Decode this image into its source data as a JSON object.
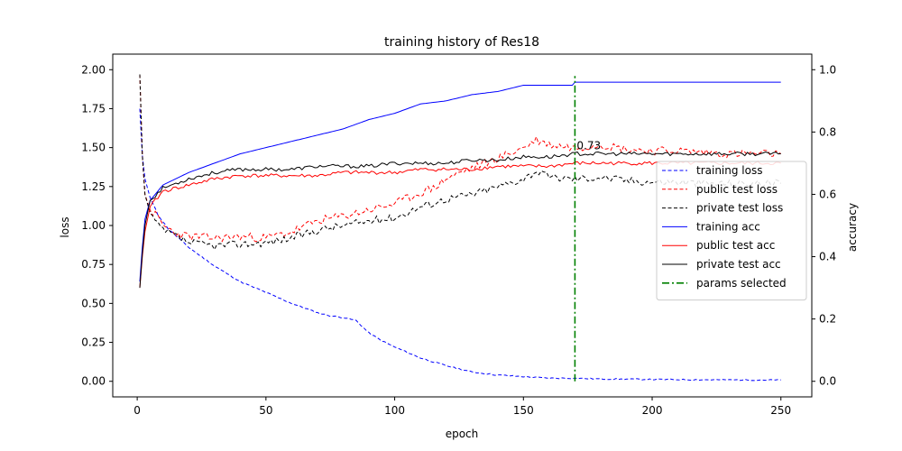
{
  "chart_data": {
    "type": "line",
    "title": "training history of Res18",
    "xlabel": "epoch",
    "ylabel": "loss",
    "ylabel_right": "accuracy",
    "xlim": [
      -9.5,
      262
    ],
    "ylim": [
      -0.1,
      2.1
    ],
    "ylim_right": [
      -0.05,
      1.05
    ],
    "x_ticks": [
      0,
      50,
      100,
      150,
      200,
      250
    ],
    "x_tick_labels": [
      "0",
      "50",
      "100",
      "150",
      "200",
      "250"
    ],
    "y_ticks": [
      0.0,
      0.25,
      0.5,
      0.75,
      1.0,
      1.25,
      1.5,
      1.75,
      2.0
    ],
    "y_tick_labels": [
      "0.00",
      "0.25",
      "0.50",
      "0.75",
      "1.00",
      "1.25",
      "1.50",
      "1.75",
      "2.00"
    ],
    "y2_ticks": [
      0.0,
      0.2,
      0.4,
      0.6,
      0.8,
      1.0
    ],
    "y2_tick_labels": [
      "0.0",
      "0.2",
      "0.4",
      "0.6",
      "0.8",
      "1.0"
    ],
    "legend_position": "right",
    "series": [
      {
        "name": "training loss",
        "axis": "left",
        "color": "#0000ff",
        "dash": "dashed",
        "points": [
          [
            1,
            1.75
          ],
          [
            2,
            1.45
          ],
          [
            3,
            1.3
          ],
          [
            5,
            1.18
          ],
          [
            8,
            1.07
          ],
          [
            12,
            0.98
          ],
          [
            20,
            0.86
          ],
          [
            30,
            0.74
          ],
          [
            40,
            0.64
          ],
          [
            50,
            0.57
          ],
          [
            60,
            0.5
          ],
          [
            70,
            0.44
          ],
          [
            75,
            0.42
          ],
          [
            80,
            0.41
          ],
          [
            85,
            0.39
          ],
          [
            90,
            0.31
          ],
          [
            95,
            0.26
          ],
          [
            100,
            0.22
          ],
          [
            110,
            0.15
          ],
          [
            120,
            0.1
          ],
          [
            130,
            0.06
          ],
          [
            140,
            0.04
          ],
          [
            150,
            0.03
          ],
          [
            160,
            0.02
          ],
          [
            170,
            0.02
          ],
          [
            180,
            0.015
          ],
          [
            200,
            0.012
          ],
          [
            220,
            0.01
          ],
          [
            250,
            0.008
          ]
        ]
      },
      {
        "name": "public test loss",
        "axis": "left",
        "color": "#ff0000",
        "dash": "dashed",
        "points": [
          [
            1,
            1.97
          ],
          [
            2,
            1.45
          ],
          [
            3,
            1.2
          ],
          [
            5,
            1.1
          ],
          [
            8,
            1.05
          ],
          [
            10,
            1.0
          ],
          [
            15,
            0.95
          ],
          [
            20,
            0.93
          ],
          [
            30,
            0.92
          ],
          [
            40,
            0.93
          ],
          [
            50,
            0.92
          ],
          [
            60,
            0.96
          ],
          [
            70,
            1.03
          ],
          [
            80,
            1.06
          ],
          [
            90,
            1.1
          ],
          [
            100,
            1.14
          ],
          [
            110,
            1.21
          ],
          [
            115,
            1.24
          ],
          [
            120,
            1.3
          ],
          [
            130,
            1.37
          ],
          [
            140,
            1.43
          ],
          [
            150,
            1.5
          ],
          [
            155,
            1.55
          ],
          [
            160,
            1.52
          ],
          [
            170,
            1.5
          ],
          [
            180,
            1.52
          ],
          [
            190,
            1.49
          ],
          [
            200,
            1.48
          ],
          [
            210,
            1.48
          ],
          [
            220,
            1.47
          ],
          [
            230,
            1.46
          ],
          [
            240,
            1.46
          ],
          [
            250,
            1.46
          ]
        ]
      },
      {
        "name": "private test loss",
        "axis": "left",
        "color": "#000000",
        "dash": "dashed",
        "points": [
          [
            1,
            1.97
          ],
          [
            2,
            1.45
          ],
          [
            3,
            1.2
          ],
          [
            5,
            1.08
          ],
          [
            8,
            1.0
          ],
          [
            10,
            0.97
          ],
          [
            15,
            0.93
          ],
          [
            20,
            0.89
          ],
          [
            30,
            0.87
          ],
          [
            40,
            0.88
          ],
          [
            50,
            0.89
          ],
          [
            60,
            0.92
          ],
          [
            70,
            0.97
          ],
          [
            80,
            1.0
          ],
          [
            90,
            1.03
          ],
          [
            100,
            1.05
          ],
          [
            110,
            1.12
          ],
          [
            120,
            1.17
          ],
          [
            130,
            1.2
          ],
          [
            140,
            1.25
          ],
          [
            150,
            1.3
          ],
          [
            155,
            1.35
          ],
          [
            160,
            1.31
          ],
          [
            170,
            1.3
          ],
          [
            180,
            1.31
          ],
          [
            190,
            1.29
          ],
          [
            200,
            1.28
          ],
          [
            210,
            1.28
          ],
          [
            220,
            1.27
          ],
          [
            230,
            1.27
          ],
          [
            240,
            1.27
          ],
          [
            250,
            1.27
          ]
        ]
      },
      {
        "name": "training acc",
        "axis": "right",
        "color": "#0000ff",
        "dash": "solid",
        "points": [
          [
            1,
            0.32
          ],
          [
            2,
            0.43
          ],
          [
            3,
            0.52
          ],
          [
            5,
            0.58
          ],
          [
            10,
            0.63
          ],
          [
            20,
            0.67
          ],
          [
            30,
            0.7
          ],
          [
            40,
            0.73
          ],
          [
            50,
            0.75
          ],
          [
            60,
            0.77
          ],
          [
            70,
            0.79
          ],
          [
            80,
            0.81
          ],
          [
            90,
            0.84
          ],
          [
            100,
            0.86
          ],
          [
            110,
            0.89
          ],
          [
            120,
            0.9
          ],
          [
            130,
            0.92
          ],
          [
            140,
            0.93
          ],
          [
            150,
            0.95
          ],
          [
            160,
            0.95
          ],
          [
            169,
            0.95
          ],
          [
            170,
            0.96
          ],
          [
            180,
            0.96
          ],
          [
            200,
            0.96
          ],
          [
            220,
            0.96
          ],
          [
            250,
            0.96
          ]
        ]
      },
      {
        "name": "public test acc",
        "axis": "right",
        "color": "#ff0000",
        "dash": "solid",
        "points": [
          [
            1,
            0.3
          ],
          [
            2,
            0.4
          ],
          [
            3,
            0.48
          ],
          [
            5,
            0.56
          ],
          [
            10,
            0.61
          ],
          [
            20,
            0.63
          ],
          [
            30,
            0.65
          ],
          [
            40,
            0.66
          ],
          [
            50,
            0.66
          ],
          [
            60,
            0.66
          ],
          [
            70,
            0.66
          ],
          [
            80,
            0.67
          ],
          [
            90,
            0.67
          ],
          [
            100,
            0.67
          ],
          [
            110,
            0.68
          ],
          [
            120,
            0.68
          ],
          [
            130,
            0.68
          ],
          [
            140,
            0.69
          ],
          [
            150,
            0.69
          ],
          [
            160,
            0.69
          ],
          [
            170,
            0.7
          ],
          [
            180,
            0.7
          ],
          [
            200,
            0.7
          ],
          [
            220,
            0.7
          ],
          [
            250,
            0.7
          ]
        ]
      },
      {
        "name": "private test acc",
        "axis": "right",
        "color": "#000000",
        "dash": "solid",
        "points": [
          [
            1,
            0.3
          ],
          [
            2,
            0.41
          ],
          [
            3,
            0.5
          ],
          [
            5,
            0.58
          ],
          [
            10,
            0.62
          ],
          [
            20,
            0.65
          ],
          [
            30,
            0.67
          ],
          [
            40,
            0.68
          ],
          [
            50,
            0.68
          ],
          [
            60,
            0.68
          ],
          [
            70,
            0.69
          ],
          [
            80,
            0.69
          ],
          [
            90,
            0.69
          ],
          [
            100,
            0.7
          ],
          [
            110,
            0.7
          ],
          [
            120,
            0.7
          ],
          [
            130,
            0.71
          ],
          [
            140,
            0.71
          ],
          [
            150,
            0.72
          ],
          [
            160,
            0.72
          ],
          [
            170,
            0.73
          ],
          [
            180,
            0.73
          ],
          [
            200,
            0.73
          ],
          [
            220,
            0.73
          ],
          [
            250,
            0.73
          ]
        ]
      },
      {
        "name": "params selected",
        "axis": "right",
        "color": "#008000",
        "dash": "dashdot",
        "points": [
          [
            170,
            0.0
          ],
          [
            170,
            0.98
          ]
        ]
      }
    ],
    "annotations": [
      {
        "text": "0.73",
        "x": 170,
        "y": 0.73,
        "axis": "right"
      }
    ]
  }
}
